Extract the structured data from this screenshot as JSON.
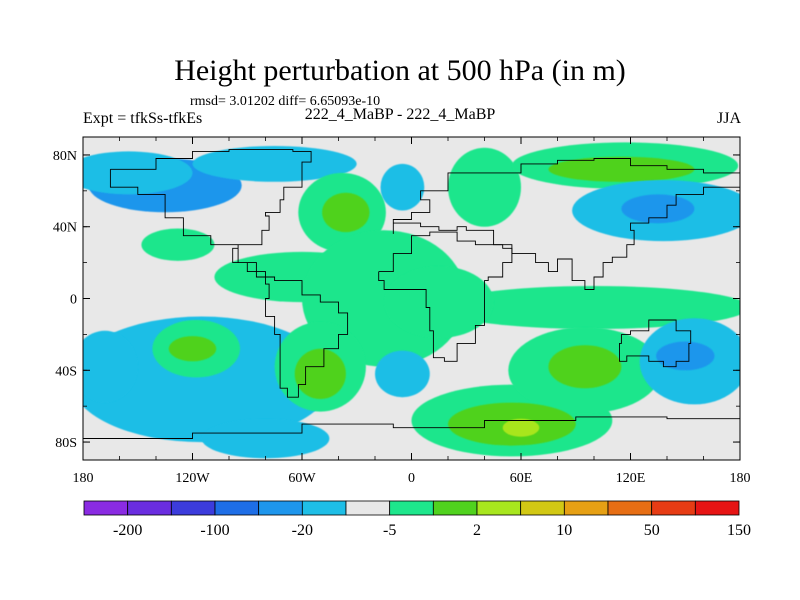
{
  "header": {
    "title": "Height perturbation at 500 hPa (in m)",
    "stats": "rmsd= 3.01202 diff= 6.65093e-10",
    "left_subtitle": "Expt = tfkSs-tfkEs",
    "center_subtitle": "222_4_MaBP - 222_4_MaBP",
    "right_subtitle": "JJA"
  },
  "chart_data": {
    "type": "heatmap",
    "title": "Height perturbation at 500 hPa (in m)",
    "map_projection": "cylindrical-equidistant",
    "lon_range": [
      -180,
      180
    ],
    "lat_range": [
      -90,
      90
    ],
    "x_ticks": [
      {
        "value": -180,
        "label": "180"
      },
      {
        "value": -120,
        "label": "120W"
      },
      {
        "value": -60,
        "label": "60W"
      },
      {
        "value": 0,
        "label": "0"
      },
      {
        "value": 60,
        "label": "60E"
      },
      {
        "value": 120,
        "label": "120E"
      },
      {
        "value": 180,
        "label": "180"
      }
    ],
    "y_ticks": [
      {
        "value": 80,
        "label": "80N"
      },
      {
        "value": 40,
        "label": "40N"
      },
      {
        "value": 0,
        "label": "0"
      },
      {
        "value": -40,
        "label": "40S"
      },
      {
        "value": -80,
        "label": "80S"
      }
    ],
    "colorbar": {
      "colors": [
        "#8a2be2",
        "#6a2de0",
        "#3c3cdc",
        "#1e6ee6",
        "#1e96ec",
        "#1ebee6",
        "#e8e8e8",
        "#1ee68c",
        "#50d21e",
        "#a8e61e",
        "#d2c814",
        "#e6a014",
        "#e66e14",
        "#e63c14",
        "#e61414"
      ],
      "labels": [
        {
          "boundary": 1,
          "text": "-200"
        },
        {
          "boundary": 3,
          "text": "-100"
        },
        {
          "boundary": 5,
          "text": "-20"
        },
        {
          "boundary": 7,
          "text": "-5"
        },
        {
          "boundary": 9,
          "text": "2"
        },
        {
          "boundary": 11,
          "text": "10"
        },
        {
          "boundary": 13,
          "text": "50"
        },
        {
          "boundary": 15,
          "text": "150"
        }
      ]
    },
    "anomalies": [
      {
        "lon": -135,
        "lat": 63,
        "rlon": 42,
        "rlat": 15,
        "level": -2
      },
      {
        "lon": -155,
        "lat": 70,
        "rlon": 35,
        "rlat": 12,
        "level": -1
      },
      {
        "lon": -75,
        "lat": 75,
        "rlon": 45,
        "rlat": 10,
        "level": -1
      },
      {
        "lon": -128,
        "lat": 30,
        "rlon": 20,
        "rlat": 9,
        "level": 1
      },
      {
        "lon": -38,
        "lat": 48,
        "rlon": 24,
        "rlat": 22,
        "level": 1
      },
      {
        "lon": -36,
        "lat": 48,
        "rlon": 13,
        "rlat": 11,
        "level": 2
      },
      {
        "lon": -5,
        "lat": 62,
        "rlon": 12,
        "rlat": 13,
        "level": -1
      },
      {
        "lon": 40,
        "lat": 62,
        "rlon": 20,
        "rlat": 22,
        "level": 1
      },
      {
        "lon": 117,
        "lat": 74,
        "rlon": 62,
        "rlat": 13,
        "level": 1
      },
      {
        "lon": 115,
        "lat": 72,
        "rlon": 40,
        "rlat": 7,
        "level": 2
      },
      {
        "lon": 138,
        "lat": 49,
        "rlon": 50,
        "rlat": 17,
        "level": -1
      },
      {
        "lon": 135,
        "lat": 50,
        "rlon": 20,
        "rlat": 8,
        "level": -2
      },
      {
        "lon": -115,
        "lat": -45,
        "rlon": 72,
        "rlat": 35,
        "level": -1
      },
      {
        "lon": -168,
        "lat": -38,
        "rlon": 18,
        "rlat": 20,
        "level": -1
      },
      {
        "lon": -118,
        "lat": -28,
        "rlon": 24,
        "rlat": 16,
        "level": 1
      },
      {
        "lon": -120,
        "lat": -28,
        "rlon": 13,
        "rlat": 7,
        "level": 2
      },
      {
        "lon": -60,
        "lat": 12,
        "rlon": 48,
        "rlat": 14,
        "level": 1
      },
      {
        "lon": -15,
        "lat": 0,
        "rlon": 45,
        "rlat": 38,
        "level": 1
      },
      {
        "lon": -50,
        "lat": -38,
        "rlon": 25,
        "rlat": 25,
        "level": 1
      },
      {
        "lon": -50,
        "lat": -42,
        "rlon": 14,
        "rlat": 14,
        "level": 2
      },
      {
        "lon": -5,
        "lat": -42,
        "rlon": 15,
        "rlat": 13,
        "level": -1
      },
      {
        "lon": -80,
        "lat": -78,
        "rlon": 35,
        "rlat": 11,
        "level": -1
      },
      {
        "lon": 100,
        "lat": -5,
        "rlon": 85,
        "rlat": 12,
        "level": 1
      },
      {
        "lon": 55,
        "lat": -68,
        "rlon": 55,
        "rlat": 20,
        "level": 1
      },
      {
        "lon": 95,
        "lat": -40,
        "rlon": 42,
        "rlat": 24,
        "level": 1
      },
      {
        "lon": 55,
        "lat": -70,
        "rlon": 35,
        "rlat": 12,
        "level": 2
      },
      {
        "lon": 95,
        "lat": -38,
        "rlon": 20,
        "rlat": 12,
        "level": 2
      },
      {
        "lon": 60,
        "lat": -72,
        "rlon": 10,
        "rlat": 5,
        "level": 3
      },
      {
        "lon": 155,
        "lat": -35,
        "rlon": 30,
        "rlat": 24,
        "level": -1
      },
      {
        "lon": 150,
        "lat": -32,
        "rlon": 16,
        "rlat": 8,
        "level": -2
      },
      {
        "lon": 15,
        "lat": -2,
        "rlon": 30,
        "rlat": 20,
        "level": 1
      }
    ],
    "land_outline": [
      [
        -165,
        72
      ],
      [
        -140,
        78
      ],
      [
        -120,
        82
      ],
      [
        -100,
        83
      ],
      [
        -80,
        83
      ],
      [
        -65,
        82
      ],
      [
        -55,
        76
      ],
      [
        -60,
        62
      ],
      [
        -70,
        55
      ],
      [
        -72,
        48
      ],
      [
        -80,
        46
      ],
      [
        -78,
        38
      ],
      [
        -82,
        30
      ],
      [
        -95,
        28
      ],
      [
        -98,
        20
      ],
      [
        -90,
        15
      ],
      [
        -80,
        8
      ],
      [
        -78,
        0
      ],
      [
        -80,
        -10
      ],
      [
        -75,
        -20
      ],
      [
        -72,
        -35
      ],
      [
        -72,
        -50
      ],
      [
        -68,
        -55
      ],
      [
        -62,
        -48
      ],
      [
        -58,
        -38
      ],
      [
        -48,
        -28
      ],
      [
        -40,
        -20
      ],
      [
        -35,
        -8
      ],
      [
        -40,
        -2
      ],
      [
        -50,
        2
      ],
      [
        -60,
        10
      ],
      [
        -75,
        12
      ],
      [
        -85,
        20
      ],
      [
        -95,
        30
      ],
      [
        -110,
        35
      ],
      [
        -125,
        45
      ],
      [
        -135,
        58
      ],
      [
        -150,
        62
      ],
      [
        -165,
        65
      ],
      [
        -165,
        72
      ]
    ],
    "land_outline_2": [
      [
        -18,
        15
      ],
      [
        -10,
        25
      ],
      [
        0,
        35
      ],
      [
        10,
        37
      ],
      [
        25,
        32
      ],
      [
        35,
        30
      ],
      [
        50,
        28
      ],
      [
        55,
        20
      ],
      [
        50,
        12
      ],
      [
        42,
        10
      ],
      [
        40,
        0
      ],
      [
        40,
        -15
      ],
      [
        35,
        -25
      ],
      [
        25,
        -35
      ],
      [
        18,
        -33
      ],
      [
        12,
        -18
      ],
      [
        10,
        -5
      ],
      [
        8,
        5
      ],
      [
        -5,
        5
      ],
      [
        -15,
        10
      ],
      [
        -18,
        15
      ]
    ],
    "land_outline_3": [
      [
        -10,
        36
      ],
      [
        -10,
        44
      ],
      [
        0,
        48
      ],
      [
        10,
        55
      ],
      [
        5,
        60
      ],
      [
        20,
        70
      ],
      [
        40,
        70
      ],
      [
        60,
        75
      ],
      [
        80,
        77
      ],
      [
        100,
        78
      ],
      [
        120,
        74
      ],
      [
        140,
        72
      ],
      [
        160,
        70
      ],
      [
        180,
        68
      ],
      [
        180,
        62
      ],
      [
        165,
        62
      ],
      [
        160,
        58
      ],
      [
        145,
        52
      ],
      [
        140,
        45
      ],
      [
        130,
        42
      ],
      [
        120,
        38
      ],
      [
        122,
        30
      ],
      [
        118,
        23
      ],
      [
        110,
        20
      ],
      [
        105,
        12
      ],
      [
        100,
        5
      ],
      [
        95,
        10
      ],
      [
        88,
        22
      ],
      [
        80,
        15
      ],
      [
        75,
        20
      ],
      [
        68,
        25
      ],
      [
        60,
        25
      ],
      [
        55,
        30
      ],
      [
        45,
        38
      ],
      [
        30,
        40
      ],
      [
        25,
        38
      ],
      [
        15,
        40
      ],
      [
        5,
        42
      ],
      [
        -10,
        36
      ]
    ],
    "land_outline_4": [
      [
        115,
        -20
      ],
      [
        120,
        -18
      ],
      [
        130,
        -12
      ],
      [
        140,
        -12
      ],
      [
        145,
        -18
      ],
      [
        153,
        -25
      ],
      [
        152,
        -35
      ],
      [
        145,
        -38
      ],
      [
        138,
        -35
      ],
      [
        130,
        -32
      ],
      [
        118,
        -35
      ],
      [
        114,
        -25
      ],
      [
        115,
        -20
      ]
    ],
    "land_outline_5": [
      [
        -180,
        -78
      ],
      [
        -120,
        -75
      ],
      [
        -60,
        -70
      ],
      [
        -10,
        -72
      ],
      [
        40,
        -68
      ],
      [
        90,
        -66
      ],
      [
        140,
        -67
      ],
      [
        180,
        -78
      ]
    ]
  }
}
